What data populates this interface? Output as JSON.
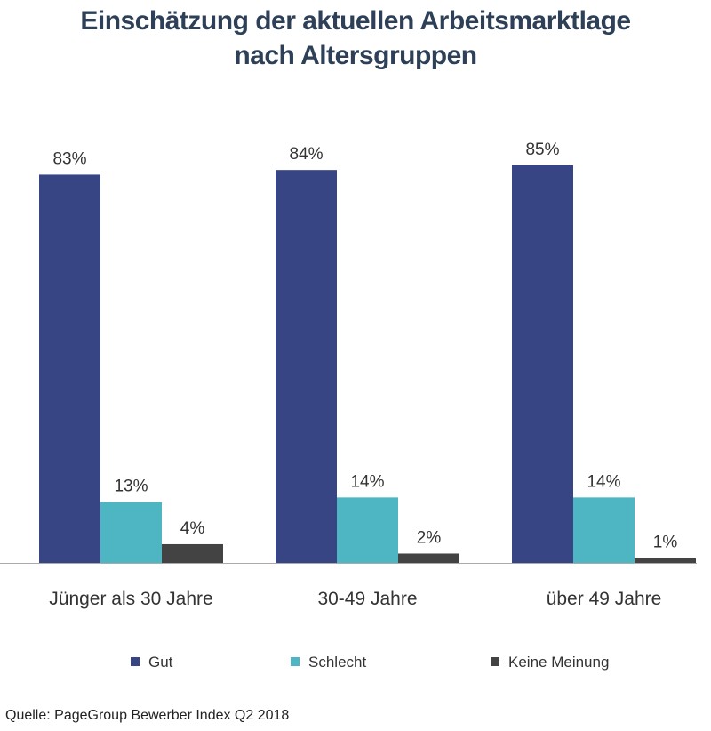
{
  "title": {
    "line1": "Einschätzung der aktuellen Arbeitsmarktlage",
    "line2": "nach Altersgruppen"
  },
  "source": "Quelle: PageGroup Bewerber Index Q2 2018",
  "chart_data": {
    "type": "bar",
    "title": "Einschätzung der aktuellen Arbeitsmarktlage nach Altersgruppen",
    "categories": [
      "Jünger als 30 Jahre",
      "30-49 Jahre",
      "über 49 Jahre"
    ],
    "series": [
      {
        "name": "Gut",
        "values": [
          83,
          84,
          85
        ],
        "color": "#384584"
      },
      {
        "name": "Schlecht",
        "values": [
          13,
          14,
          14
        ],
        "color": "#4db6c2"
      },
      {
        "name": "Keine Meinung",
        "values": [
          4,
          2,
          1
        ],
        "color": "#434343"
      }
    ],
    "value_suffix": "%",
    "ylim": [
      0,
      100
    ],
    "grid": false,
    "legend": "bottom",
    "axis_color": "#aaaaaa"
  }
}
